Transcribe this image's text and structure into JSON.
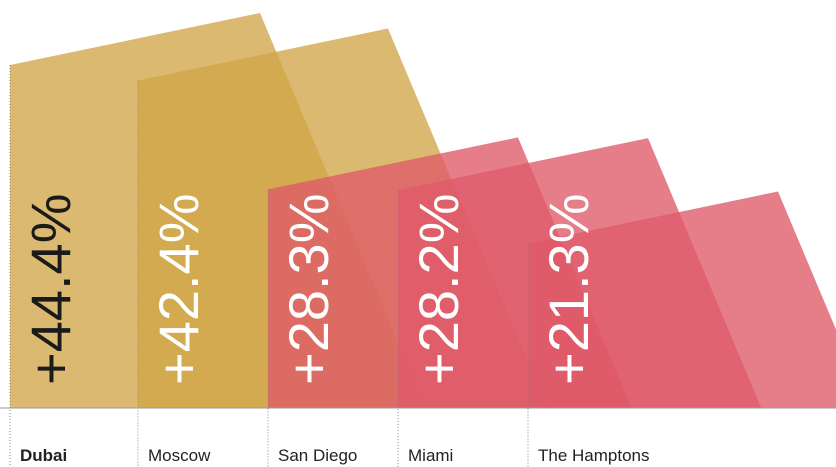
{
  "chart_data": {
    "type": "bar",
    "categories": [
      "Dubai",
      "Moscow",
      "San Diego",
      "Miami",
      "The Hamptons"
    ],
    "values": [
      44.4,
      42.4,
      28.3,
      28.2,
      21.3
    ],
    "value_labels": [
      "+44.4%",
      "+42.4%",
      "+28.3%",
      "+28.2%",
      "+21.3%"
    ],
    "colors": [
      "#d1a548",
      "#d1a548",
      "#df5a69",
      "#df5a69",
      "#df5a69"
    ],
    "label_colors": [
      "#1a1a1a",
      "#ffffff",
      "#ffffff",
      "#ffffff",
      "#ffffff"
    ]
  }
}
